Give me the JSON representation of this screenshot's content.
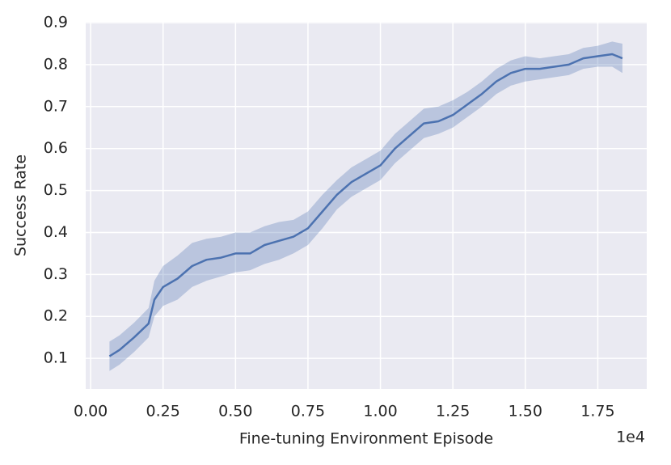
{
  "chart_data": {
    "type": "line",
    "xlabel": "Fine-tuning Environment Episode",
    "ylabel": "Success Rate",
    "x_offset_label": "1e4",
    "x": [
      0.065,
      0.1,
      0.15,
      0.2,
      0.22,
      0.25,
      0.3,
      0.35,
      0.4,
      0.45,
      0.5,
      0.55,
      0.6,
      0.65,
      0.7,
      0.75,
      0.8,
      0.85,
      0.9,
      0.95,
      1.0,
      1.05,
      1.1,
      1.15,
      1.2,
      1.25,
      1.3,
      1.35,
      1.4,
      1.45,
      1.5,
      1.55,
      1.6,
      1.65,
      1.7,
      1.75,
      1.8,
      1.835
    ],
    "series": [
      {
        "color": "#4c72b0",
        "values": [
          0.105,
          0.12,
          0.15,
          0.183,
          0.24,
          0.27,
          0.29,
          0.32,
          0.335,
          0.34,
          0.35,
          0.35,
          0.37,
          0.38,
          0.39,
          0.41,
          0.45,
          0.49,
          0.52,
          0.54,
          0.56,
          0.6,
          0.63,
          0.66,
          0.665,
          0.68,
          0.705,
          0.73,
          0.76,
          0.78,
          0.79,
          0.79,
          0.795,
          0.8,
          0.815,
          0.82,
          0.825,
          0.815
        ],
        "band": {
          "lower": [
            0.07,
            0.085,
            0.115,
            0.15,
            0.2,
            0.225,
            0.24,
            0.27,
            0.285,
            0.295,
            0.305,
            0.31,
            0.325,
            0.335,
            0.35,
            0.37,
            0.41,
            0.455,
            0.485,
            0.505,
            0.525,
            0.565,
            0.595,
            0.625,
            0.635,
            0.65,
            0.675,
            0.7,
            0.73,
            0.75,
            0.76,
            0.765,
            0.77,
            0.775,
            0.79,
            0.795,
            0.795,
            0.78
          ],
          "upper": [
            0.14,
            0.155,
            0.185,
            0.22,
            0.285,
            0.32,
            0.345,
            0.375,
            0.385,
            0.39,
            0.4,
            0.4,
            0.415,
            0.425,
            0.43,
            0.45,
            0.49,
            0.525,
            0.555,
            0.575,
            0.595,
            0.635,
            0.665,
            0.695,
            0.7,
            0.715,
            0.735,
            0.76,
            0.79,
            0.81,
            0.82,
            0.815,
            0.82,
            0.825,
            0.84,
            0.845,
            0.855,
            0.85
          ]
        }
      }
    ],
    "xlim": [
      -0.017,
      1.919
    ],
    "xticks": [
      {
        "value": 0,
        "label": "0.00"
      },
      {
        "value": 0.25,
        "label": "0.25"
      },
      {
        "value": 0.5,
        "label": "0.50"
      },
      {
        "value": 0.75,
        "label": "0.75"
      },
      {
        "value": 1,
        "label": "1.00"
      },
      {
        "value": 1.25,
        "label": "1.25"
      },
      {
        "value": 1.5,
        "label": "1.50"
      },
      {
        "value": 1.75,
        "label": "1.75"
      }
    ],
    "ylim": [
      0.027,
      0.902
    ],
    "yticks": [
      0.1,
      0.2,
      0.3,
      0.4,
      0.5,
      0.6,
      0.7,
      0.8,
      0.9
    ],
    "grid": true,
    "background": "#eaeaf2",
    "band_opacity": 0.3
  }
}
